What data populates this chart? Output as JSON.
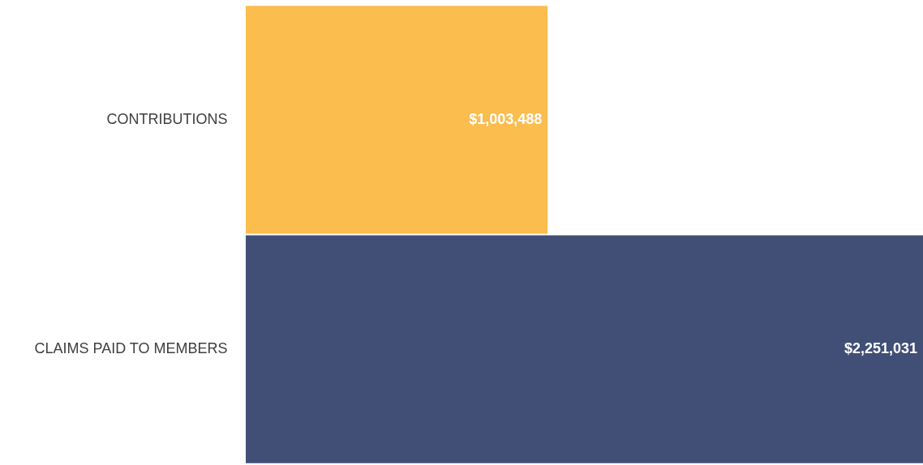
{
  "chart_data": {
    "type": "bar",
    "orientation": "horizontal",
    "categories": [
      "CONTRIBUTIONS",
      "CLAIMS PAID TO MEMBERS"
    ],
    "values": [
      1003488,
      2251031
    ],
    "colors": [
      "#fbbd4e",
      "#414f77"
    ],
    "value_labels": [
      "$1,003,488",
      "$2,251,031"
    ]
  }
}
